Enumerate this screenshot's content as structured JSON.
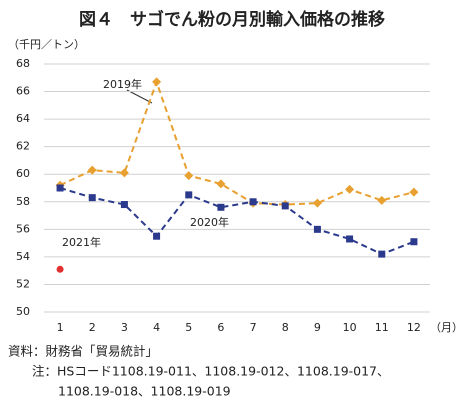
{
  "chart_data": {
    "type": "line",
    "title": "図４　サゴでん粉の月別輸入価格の推移",
    "y_label": "（千円／トン）",
    "x_label": "（月）",
    "categories": [
      "1",
      "2",
      "3",
      "4",
      "5",
      "6",
      "7",
      "8",
      "9",
      "10",
      "11",
      "12"
    ],
    "series": [
      {
        "name": "2019年",
        "color": "#e8a030",
        "marker": "diamond",
        "dashed": true,
        "values": [
          59.2,
          60.3,
          60.1,
          66.7,
          59.9,
          59.3,
          57.9,
          57.8,
          57.9,
          58.9,
          58.1,
          58.7
        ]
      },
      {
        "name": "2020年",
        "color": "#2b3a8c",
        "marker": "square",
        "dashed": true,
        "values": [
          59.0,
          58.3,
          57.8,
          55.5,
          58.5,
          57.6,
          58.0,
          57.7,
          56.0,
          55.3,
          54.2,
          55.1
        ]
      },
      {
        "name": "2021年",
        "color": "#e03030",
        "marker": "circle",
        "dashed": false,
        "values": [
          53.1,
          null,
          null,
          null,
          null,
          null,
          null,
          null,
          null,
          null,
          null,
          null
        ]
      }
    ],
    "ylim": [
      50,
      68
    ],
    "yticks": [
      50,
      52,
      54,
      56,
      58,
      60,
      62,
      64,
      66,
      68
    ],
    "grid": true,
    "source": "資料：財務省「貿易統計」",
    "notes": [
      "注：HSコード1108.19-011、1108.19-012、1108.19-017、",
      "1108.19-018、1108.19-019"
    ]
  }
}
